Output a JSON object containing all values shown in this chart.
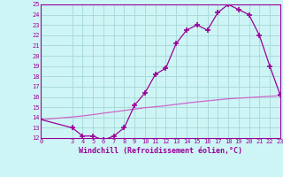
{
  "xlabel": "Windchill (Refroidissement éolien,°C)",
  "background_color": "#cef5f5",
  "grid_color": "#aadada",
  "line_color": "#990099",
  "line2_color": "#cc66cc",
  "x_data": [
    0,
    3,
    4,
    5,
    6,
    7,
    8,
    9,
    10,
    11,
    12,
    13,
    14,
    15,
    16,
    17,
    18,
    19,
    20,
    21,
    22,
    23
  ],
  "y_data": [
    13.8,
    13.0,
    12.2,
    12.2,
    11.8,
    12.2,
    13.0,
    15.2,
    16.4,
    18.2,
    18.8,
    21.2,
    22.5,
    23.0,
    22.5,
    24.2,
    25.0,
    24.5,
    24.0,
    22.0,
    19.0,
    16.2
  ],
  "y2_data": [
    13.8,
    14.05,
    14.15,
    14.28,
    14.42,
    14.55,
    14.68,
    14.82,
    14.95,
    15.05,
    15.15,
    15.28,
    15.4,
    15.52,
    15.62,
    15.72,
    15.82,
    15.88,
    15.94,
    16.0,
    16.06,
    16.12
  ],
  "ylim": [
    12,
    25
  ],
  "xlim": [
    0,
    23
  ],
  "yticks": [
    12,
    13,
    14,
    15,
    16,
    17,
    18,
    19,
    20,
    21,
    22,
    23,
    24,
    25
  ],
  "xticks": [
    0,
    3,
    4,
    5,
    6,
    7,
    8,
    9,
    10,
    11,
    12,
    13,
    14,
    15,
    16,
    17,
    18,
    19,
    20,
    21,
    22,
    23
  ]
}
